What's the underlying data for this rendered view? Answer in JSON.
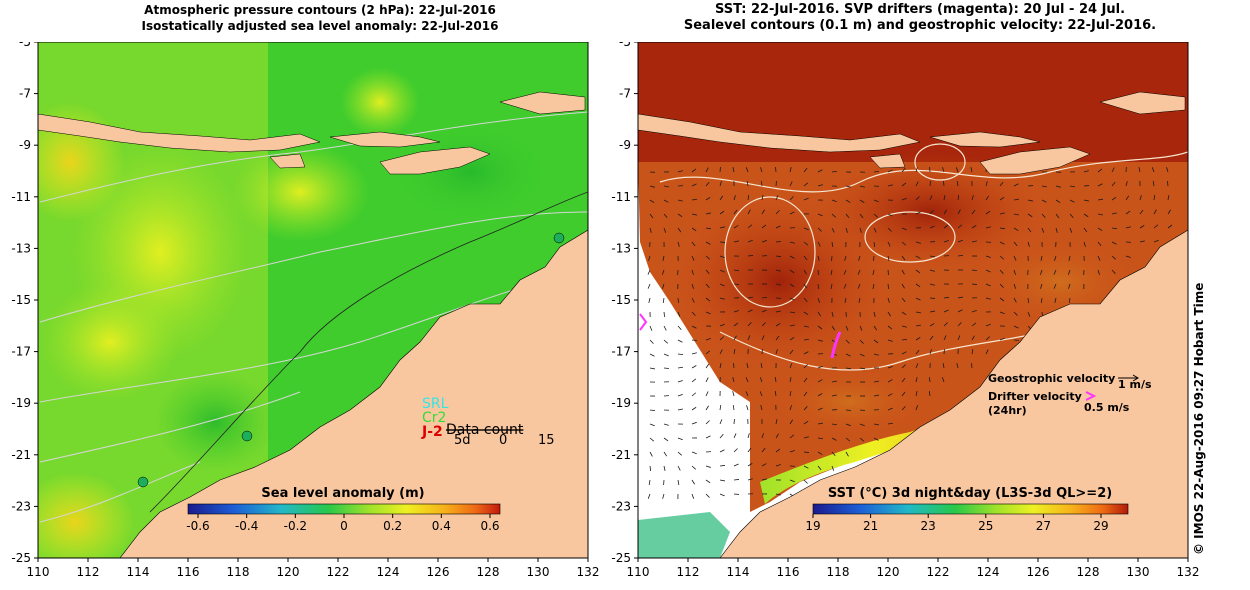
{
  "left_map": {
    "title_line1": "Atmospheric pressure contours (2 hPa): 22-Jul-2016",
    "title_line2": "Isostatically adjusted sea level anomaly: 22-Jul-2016",
    "colorbar_title": "Sea level anomaly (m)",
    "colorbar_ticks": [
      "-0.6",
      "-0.4",
      "-0.2",
      "0",
      "0.2",
      "0.4",
      "0.6"
    ],
    "legend": {
      "srl": "SRL",
      "cr2": "Cr2",
      "j2": "J-2",
      "data_count": "Data count",
      "count_ticks": [
        "5d",
        "0",
        "15"
      ]
    },
    "colors": {
      "ocean": "#3fcc2c",
      "land": "#f9c79f",
      "srl": "#33e6e6",
      "cr2": "#33dd33",
      "j2": "#dd0000"
    }
  },
  "right_map": {
    "title_line1": "SST: 22-Jul-2016. SVP drifters (magenta): 20 Jul - 24 Jul.",
    "title_line2": "Sealevel contours (0.1 m) and geostrophic velocity: 22-Jul-2016.",
    "colorbar_title": "SST (°C) 3d night&day (L3S-3d QL>=2)",
    "colorbar_ticks": [
      "19",
      "21",
      "23",
      "25",
      "27",
      "29"
    ],
    "legend": {
      "geostrophic_label": "Geostrophic velocity",
      "geostrophic_scale": "1 m/s",
      "drifter_label": "Drifter velocity",
      "drifter_period": "(24hr)",
      "drifter_scale": "0.5 m/s"
    },
    "colors": {
      "sst_warm": "#b02a0a",
      "land": "#f9c79f",
      "drifter": "#ff33ff"
    }
  },
  "axes": {
    "x_ticks": [
      "110",
      "112",
      "114",
      "116",
      "118",
      "120",
      "122",
      "124",
      "126",
      "128",
      "130",
      "132"
    ],
    "y_ticks": [
      "-5",
      "-7",
      "-9",
      "-11",
      "-13",
      "-15",
      "-17",
      "-19",
      "-21",
      "-23",
      "-25"
    ]
  },
  "copyright": "© IMOS 22-Aug-2016 09:27 Hobart Time"
}
